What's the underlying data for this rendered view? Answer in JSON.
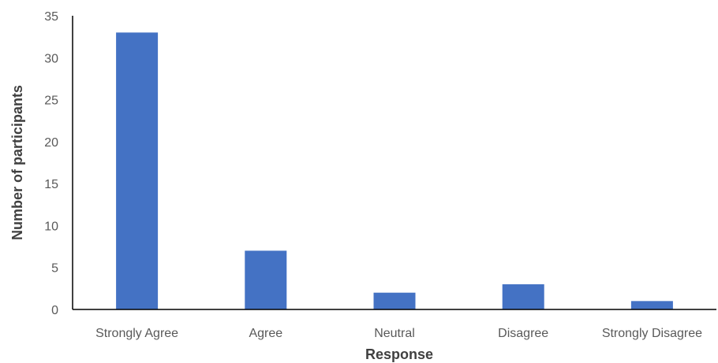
{
  "chart_data": {
    "type": "bar",
    "title": "",
    "xlabel": "Response",
    "ylabel": "Number of participants",
    "categories": [
      "Strongly Agree",
      "Agree",
      "Neutral",
      "Disagree",
      "Strongly Disagree"
    ],
    "values": [
      33,
      7,
      2,
      3,
      1
    ],
    "ylim": [
      0,
      35
    ],
    "yticks": [
      0,
      5,
      10,
      15,
      20,
      25,
      30,
      35
    ],
    "grid": false,
    "legend": "none",
    "colors": {
      "bar": "#4472C4",
      "axis": "#000000"
    }
  }
}
